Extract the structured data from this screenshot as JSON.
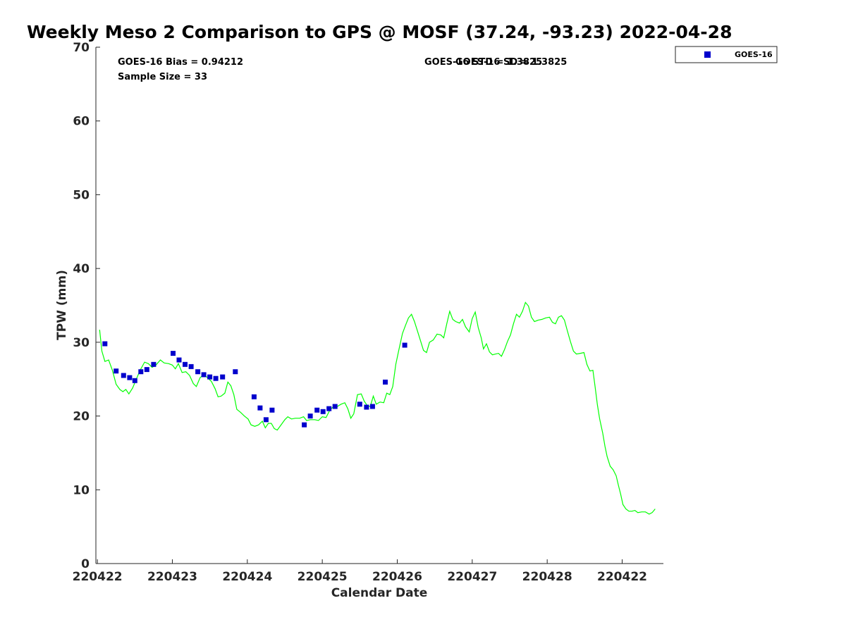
{
  "chart_data": {
    "type": "line",
    "title": "Weekly Meso 2 Comparison to GPS @ MOSF (37.24, -93.23) 2022-04-28",
    "xlabel": "Calendar Date",
    "ylabel": "TPW (mm)",
    "ylim": [
      0,
      70
    ],
    "xlim": [
      -0.02,
      7.55
    ],
    "yticks": [
      0,
      10,
      20,
      30,
      40,
      50,
      60,
      70
    ],
    "xticks": [
      0,
      1,
      2,
      3,
      4,
      5,
      6,
      7
    ],
    "xtick_labels": [
      "220422",
      "220423",
      "220424",
      "220425",
      "220426",
      "220427",
      "220428",
      "220422"
    ],
    "annotations": {
      "bias": "GOES-16 Bias = 0.94212",
      "sample_size": "Sample Size = 33",
      "std_a": "GOES-16 STD = 1.3825",
      "std_b": "GOES-16 SD = 1.3825"
    },
    "legend": {
      "label": "GOES-16",
      "location": "top-right"
    },
    "colors": {
      "gps_line": "#00ff00",
      "goes_marker": "#0000cc"
    },
    "series": [
      {
        "name": "GPS",
        "kind": "line",
        "points": [
          [
            0.03,
            31.7
          ],
          [
            0.06,
            28.8
          ],
          [
            0.1,
            27.4
          ],
          [
            0.15,
            27.6
          ],
          [
            0.2,
            26.2
          ],
          [
            0.25,
            24.3
          ],
          [
            0.3,
            23.6
          ],
          [
            0.34,
            23.3
          ],
          [
            0.38,
            23.6
          ],
          [
            0.42,
            23.0
          ],
          [
            0.47,
            23.8
          ],
          [
            0.52,
            25.0
          ],
          [
            0.57,
            26.2
          ],
          [
            0.63,
            27.3
          ],
          [
            0.68,
            27.1
          ],
          [
            0.73,
            26.6
          ],
          [
            0.78,
            26.9
          ],
          [
            0.84,
            27.6
          ],
          [
            0.89,
            27.2
          ],
          [
            0.95,
            27.1
          ],
          [
            1.0,
            26.9
          ],
          [
            1.04,
            26.4
          ],
          [
            1.08,
            27.1
          ],
          [
            1.13,
            25.9
          ],
          [
            1.18,
            26.0
          ],
          [
            1.23,
            25.5
          ],
          [
            1.28,
            24.4
          ],
          [
            1.32,
            24.0
          ],
          [
            1.37,
            25.2
          ],
          [
            1.42,
            25.6
          ],
          [
            1.47,
            25.2
          ],
          [
            1.52,
            24.7
          ],
          [
            1.57,
            23.7
          ],
          [
            1.61,
            22.6
          ],
          [
            1.65,
            22.7
          ],
          [
            1.7,
            23.1
          ],
          [
            1.74,
            24.6
          ],
          [
            1.78,
            24.1
          ],
          [
            1.82,
            22.9
          ],
          [
            1.86,
            20.9
          ],
          [
            1.91,
            20.5
          ],
          [
            1.96,
            20.0
          ],
          [
            2.01,
            19.6
          ],
          [
            2.05,
            18.8
          ],
          [
            2.1,
            18.6
          ],
          [
            2.15,
            18.8
          ],
          [
            2.2,
            19.3
          ],
          [
            2.24,
            18.4
          ],
          [
            2.28,
            19.0
          ],
          [
            2.32,
            19.0
          ],
          [
            2.36,
            18.3
          ],
          [
            2.4,
            18.1
          ],
          [
            2.45,
            18.8
          ],
          [
            2.5,
            19.5
          ],
          [
            2.54,
            19.9
          ],
          [
            2.59,
            19.6
          ],
          [
            2.64,
            19.7
          ],
          [
            2.7,
            19.7
          ],
          [
            2.75,
            19.9
          ],
          [
            2.79,
            19.4
          ],
          [
            2.84,
            19.5
          ],
          [
            2.9,
            19.5
          ],
          [
            2.95,
            19.4
          ],
          [
            3.0,
            19.9
          ],
          [
            3.05,
            19.8
          ],
          [
            3.1,
            20.8
          ],
          [
            3.15,
            21.3
          ],
          [
            3.2,
            21.3
          ],
          [
            3.25,
            21.6
          ],
          [
            3.3,
            21.8
          ],
          [
            3.34,
            21.0
          ],
          [
            3.38,
            19.7
          ],
          [
            3.42,
            20.3
          ],
          [
            3.47,
            22.9
          ],
          [
            3.52,
            23.0
          ],
          [
            3.56,
            22.0
          ],
          [
            3.6,
            21.4
          ],
          [
            3.64,
            21.3
          ],
          [
            3.68,
            22.7
          ],
          [
            3.72,
            21.6
          ],
          [
            3.77,
            21.9
          ],
          [
            3.82,
            21.8
          ],
          [
            3.86,
            23.1
          ],
          [
            3.9,
            22.9
          ],
          [
            3.94,
            24.0
          ],
          [
            3.98,
            27.0
          ],
          [
            4.02,
            28.9
          ],
          [
            4.07,
            31.2
          ],
          [
            4.11,
            32.3
          ],
          [
            4.15,
            33.3
          ],
          [
            4.19,
            33.8
          ],
          [
            4.23,
            32.8
          ],
          [
            4.27,
            31.5
          ],
          [
            4.31,
            30.2
          ],
          [
            4.35,
            28.9
          ],
          [
            4.39,
            28.6
          ],
          [
            4.43,
            30.0
          ],
          [
            4.48,
            30.3
          ],
          [
            4.53,
            31.1
          ],
          [
            4.58,
            31.0
          ],
          [
            4.62,
            30.6
          ],
          [
            4.66,
            32.5
          ],
          [
            4.7,
            34.2
          ],
          [
            4.74,
            33.1
          ],
          [
            4.78,
            32.8
          ],
          [
            4.83,
            32.6
          ],
          [
            4.87,
            33.1
          ],
          [
            4.91,
            32.1
          ],
          [
            4.96,
            31.4
          ],
          [
            5.0,
            33.2
          ],
          [
            5.04,
            34.1
          ],
          [
            5.08,
            32.0
          ],
          [
            5.12,
            30.6
          ],
          [
            5.15,
            29.1
          ],
          [
            5.19,
            29.8
          ],
          [
            5.23,
            28.7
          ],
          [
            5.27,
            28.3
          ],
          [
            5.31,
            28.4
          ],
          [
            5.35,
            28.5
          ],
          [
            5.39,
            28.1
          ],
          [
            5.43,
            29.0
          ],
          [
            5.47,
            30.1
          ],
          [
            5.51,
            31.0
          ],
          [
            5.55,
            32.5
          ],
          [
            5.59,
            33.8
          ],
          [
            5.63,
            33.4
          ],
          [
            5.67,
            34.2
          ],
          [
            5.71,
            35.4
          ],
          [
            5.75,
            34.9
          ],
          [
            5.79,
            33.4
          ],
          [
            5.83,
            32.8
          ],
          [
            5.88,
            33.0
          ],
          [
            5.93,
            33.1
          ],
          [
            5.98,
            33.3
          ],
          [
            6.03,
            33.4
          ],
          [
            6.07,
            32.7
          ],
          [
            6.11,
            32.5
          ],
          [
            6.15,
            33.4
          ],
          [
            6.19,
            33.6
          ],
          [
            6.23,
            33.0
          ],
          [
            6.27,
            31.5
          ],
          [
            6.31,
            30.1
          ],
          [
            6.35,
            28.8
          ],
          [
            6.39,
            28.4
          ],
          [
            6.44,
            28.5
          ],
          [
            6.49,
            28.6
          ],
          [
            6.53,
            27.0
          ],
          [
            6.57,
            26.1
          ],
          [
            6.61,
            26.2
          ],
          [
            6.64,
            23.9
          ],
          [
            6.67,
            21.5
          ],
          [
            6.7,
            19.6
          ],
          [
            6.74,
            17.7
          ],
          [
            6.77,
            15.9
          ],
          [
            6.8,
            14.5
          ],
          [
            6.84,
            13.2
          ],
          [
            6.88,
            12.7
          ],
          [
            6.92,
            11.9
          ],
          [
            6.95,
            10.6
          ],
          [
            6.98,
            9.4
          ],
          [
            7.01,
            8.0
          ],
          [
            7.05,
            7.4
          ],
          [
            7.09,
            7.1
          ],
          [
            7.13,
            7.1
          ],
          [
            7.17,
            7.2
          ],
          [
            7.21,
            6.9
          ],
          [
            7.26,
            7.0
          ],
          [
            7.31,
            7.0
          ],
          [
            7.36,
            6.7
          ],
          [
            7.4,
            6.9
          ],
          [
            7.44,
            7.4
          ]
        ]
      },
      {
        "name": "GOES-16",
        "kind": "marker",
        "points": [
          [
            0.1,
            29.8
          ],
          [
            0.25,
            26.1
          ],
          [
            0.35,
            25.5
          ],
          [
            0.43,
            25.2
          ],
          [
            0.5,
            24.8
          ],
          [
            0.58,
            26.0
          ],
          [
            0.66,
            26.3
          ],
          [
            0.75,
            27.0
          ],
          [
            1.01,
            28.5
          ],
          [
            1.09,
            27.6
          ],
          [
            1.17,
            27.0
          ],
          [
            1.25,
            26.7
          ],
          [
            1.34,
            26.0
          ],
          [
            1.42,
            25.6
          ],
          [
            1.5,
            25.3
          ],
          [
            1.58,
            25.1
          ],
          [
            1.67,
            25.3
          ],
          [
            1.84,
            26.0
          ],
          [
            2.09,
            22.6
          ],
          [
            2.17,
            21.1
          ],
          [
            2.25,
            19.5
          ],
          [
            2.33,
            20.8
          ],
          [
            2.76,
            18.8
          ],
          [
            2.84,
            20.0
          ],
          [
            2.93,
            20.8
          ],
          [
            3.01,
            20.6
          ],
          [
            3.09,
            21.0
          ],
          [
            3.17,
            21.3
          ],
          [
            3.5,
            21.6
          ],
          [
            3.59,
            21.2
          ],
          [
            3.67,
            21.3
          ],
          [
            3.84,
            24.6
          ],
          [
            4.1,
            29.6
          ]
        ]
      }
    ]
  }
}
